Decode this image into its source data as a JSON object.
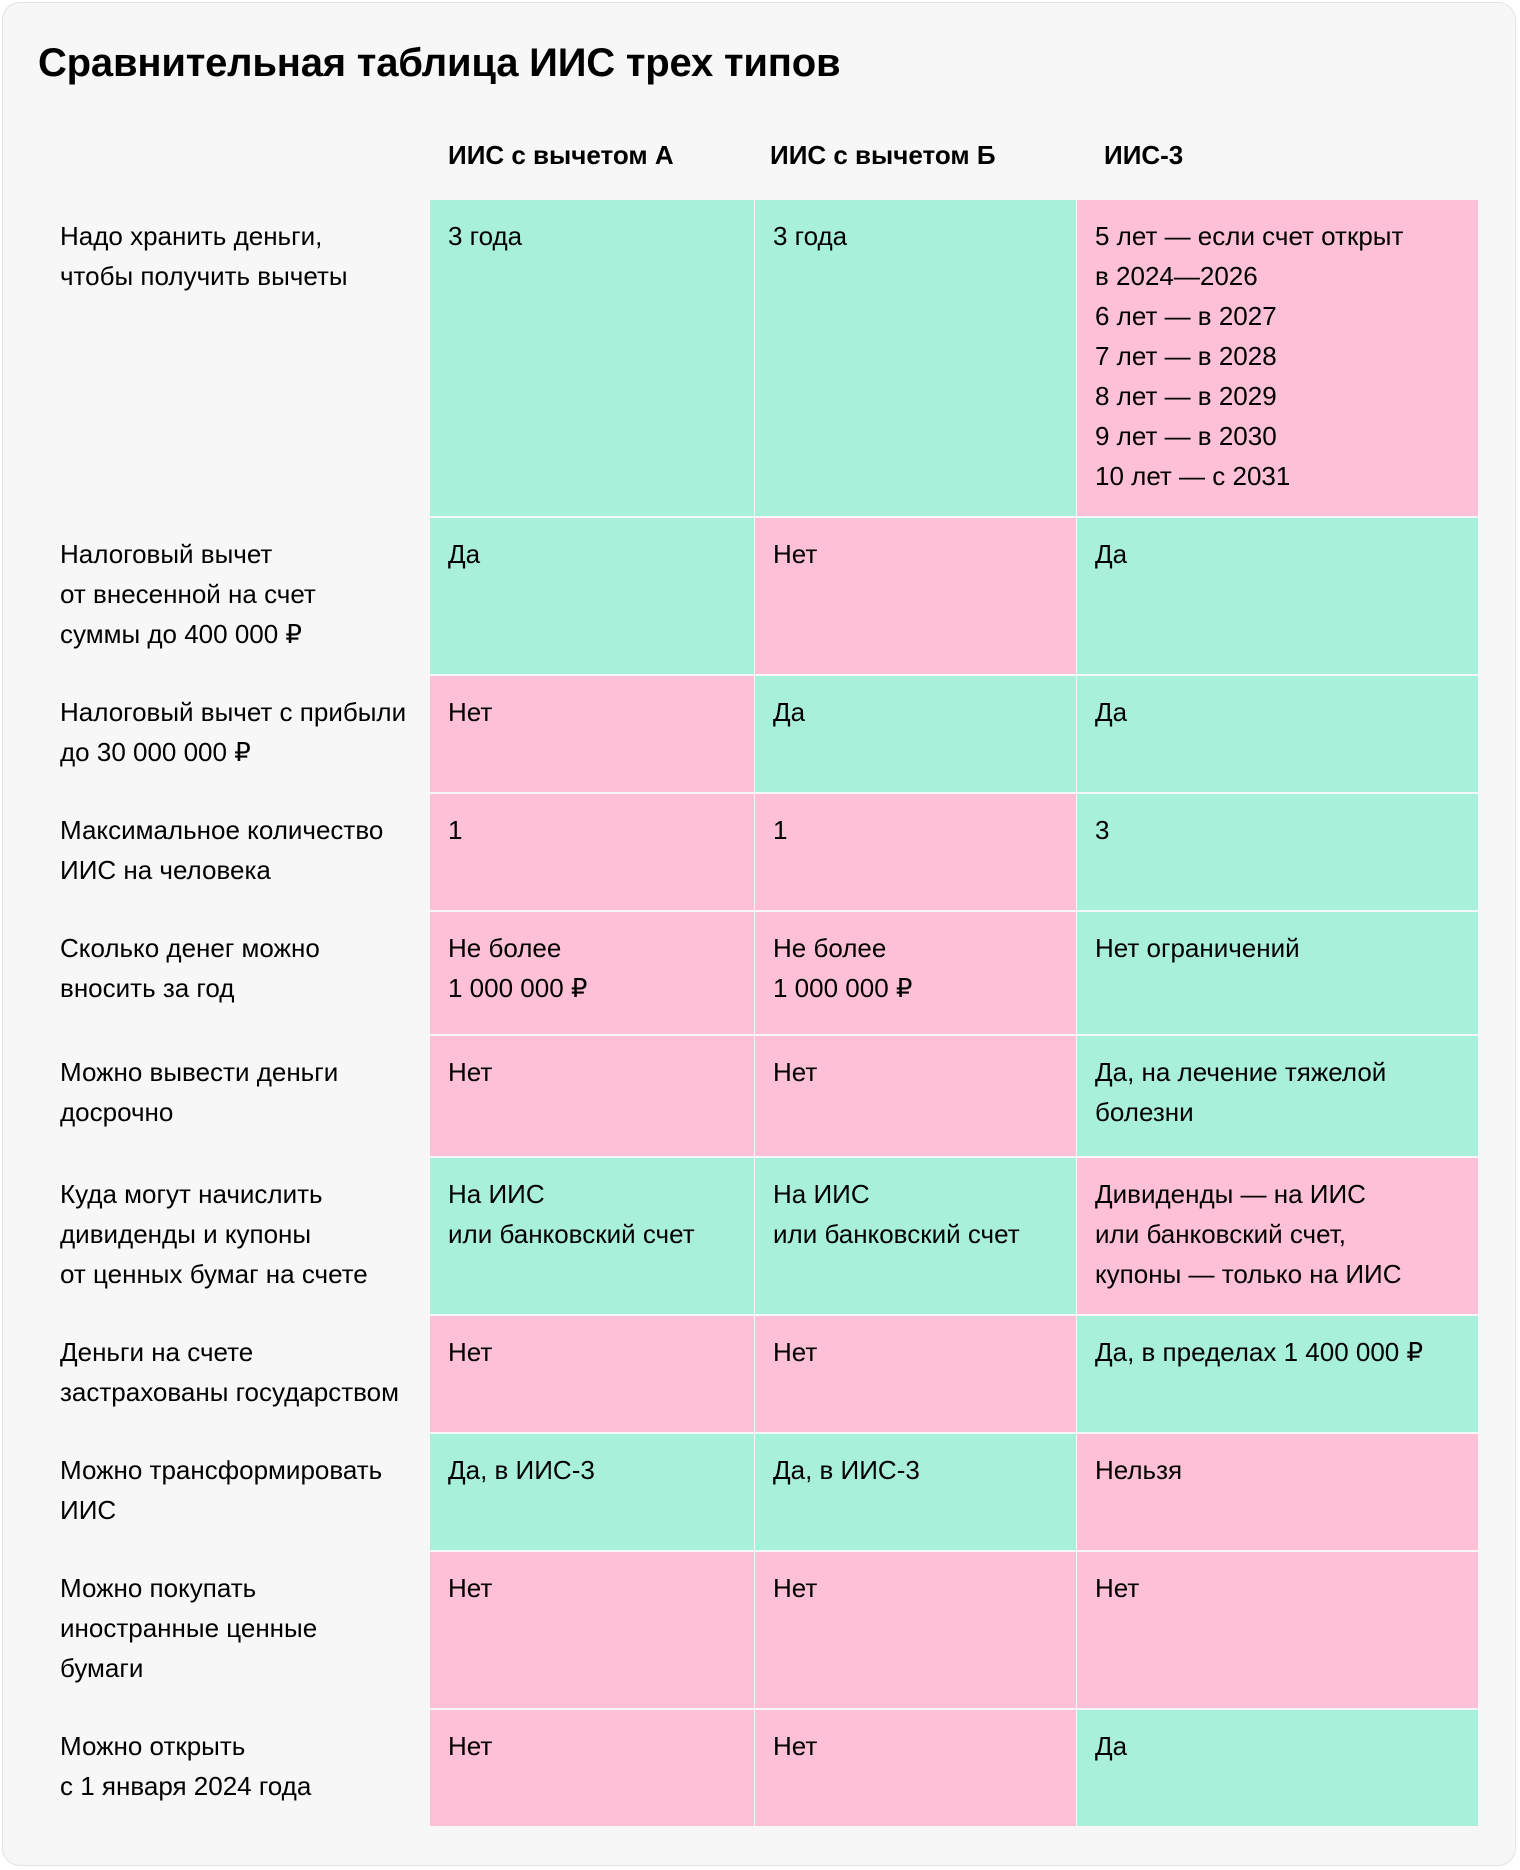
{
  "title": "Сравнительная таблица ИИС трех типов",
  "colors": {
    "favorable": "#a8f0dc",
    "unfavorable": "#fec0d6",
    "card_background": "#f7f7f7"
  },
  "columns": [
    "ИИС с вычетом А",
    "ИИС с вычетом Б",
    "ИИС-3"
  ],
  "rows": [
    {
      "label": "Надо хранить деньги,\nчтобы получить вычеты",
      "cells": [
        {
          "text": "3 года",
          "tone": "yes"
        },
        {
          "text": "3 года",
          "tone": "yes"
        },
        {
          "text": "5 лет — если счет открыт\nв 2024—2026\n6 лет — в 2027\n7 лет — в 2028\n8 лет — в 2029\n9 лет — в 2030\n10 лет — с 2031",
          "tone": "no"
        }
      ]
    },
    {
      "label": "Налоговый вычет\nот внесенной на счет\nсуммы до 400 000 ₽",
      "cells": [
        {
          "text": "Да",
          "tone": "yes"
        },
        {
          "text": "Нет",
          "tone": "no"
        },
        {
          "text": "Да",
          "tone": "yes"
        }
      ]
    },
    {
      "label": "Налоговый вычет с прибыли\nдо 30 000 000 ₽",
      "cells": [
        {
          "text": "Нет",
          "tone": "no"
        },
        {
          "text": "Да",
          "tone": "yes"
        },
        {
          "text": "Да",
          "tone": "yes"
        }
      ]
    },
    {
      "label": "Максимальное количество\nИИС на человека",
      "cells": [
        {
          "text": "1",
          "tone": "no"
        },
        {
          "text": "1",
          "tone": "no"
        },
        {
          "text": "3",
          "tone": "yes"
        }
      ]
    },
    {
      "label": "Сколько денег можно\nвносить за год",
      "cells": [
        {
          "text": "Не более\n1 000 000 ₽",
          "tone": "no"
        },
        {
          "text": "Не более\n1 000 000 ₽",
          "tone": "no"
        },
        {
          "text": "Нет ограничений",
          "tone": "yes"
        }
      ]
    },
    {
      "label": "Можно вывести деньги\nдосрочно",
      "cells": [
        {
          "text": "Нет",
          "tone": "no"
        },
        {
          "text": "Нет",
          "tone": "no"
        },
        {
          "text": "Да, на лечение тяжелой\nболезни",
          "tone": "yes"
        }
      ]
    },
    {
      "label": "Куда могут начислить\nдивиденды и купоны\nот ценных бумаг на счете",
      "cells": [
        {
          "text": "На ИИС\nили банковский счет",
          "tone": "yes"
        },
        {
          "text": "На ИИС\nили банковский счет",
          "tone": "yes"
        },
        {
          "text": "Дивиденды — на ИИС\nили банковский счет,\nкупоны — только на ИИС",
          "tone": "no"
        }
      ]
    },
    {
      "label": "Деньги на счете\nзастрахованы государством",
      "cells": [
        {
          "text": "Нет",
          "tone": "no"
        },
        {
          "text": "Нет",
          "tone": "no"
        },
        {
          "text": "Да, в пределах 1 400 000 ₽",
          "tone": "yes"
        }
      ]
    },
    {
      "label": "Можно трансформировать\nИИС",
      "cells": [
        {
          "text": "Да, в ИИС-3",
          "tone": "yes"
        },
        {
          "text": "Да, в ИИС-3",
          "tone": "yes"
        },
        {
          "text": "Нельзя",
          "tone": "no"
        }
      ]
    },
    {
      "label": "Можно покупать\nиностранные ценные\nбумаги",
      "cells": [
        {
          "text": "Нет",
          "tone": "no"
        },
        {
          "text": "Нет",
          "tone": "no"
        },
        {
          "text": "Нет",
          "tone": "no"
        }
      ]
    },
    {
      "label": "Можно открыть\nс 1 января 2024 года",
      "cells": [
        {
          "text": "Нет",
          "tone": "no"
        },
        {
          "text": "Нет",
          "tone": "no"
        },
        {
          "text": "Да",
          "tone": "yes"
        }
      ]
    }
  ]
}
